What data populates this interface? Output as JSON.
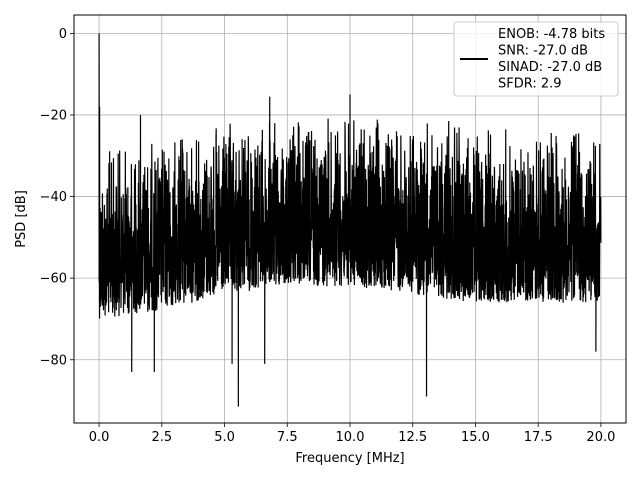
{
  "chart_data": {
    "type": "line",
    "title": "",
    "xlabel": "Frequency [MHz]",
    "ylabel": "PSD [dB]",
    "xlim": [
      -1.0,
      21.0
    ],
    "ylim": [
      -95.5,
      4.5
    ],
    "x_ticks": [
      0.0,
      2.5,
      5.0,
      7.5,
      10.0,
      12.5,
      15.0,
      17.5,
      20.0
    ],
    "x_tick_labels": [
      "0.0",
      "2.5",
      "5.0",
      "7.5",
      "10.0",
      "12.5",
      "15.0",
      "17.5",
      "20.0"
    ],
    "y_ticks": [
      0,
      -20,
      -40,
      -60,
      -80
    ],
    "y_tick_labels": [
      "0",
      "−20",
      "−40",
      "−60",
      "−80"
    ],
    "grid": true,
    "legend_position": "top-right",
    "legend": {
      "lines": [
        "ENOB: -4.78 bits",
        "SNR: -27.0 dB",
        "SINAD: -27.0 dB",
        "SFDR: 2.9"
      ]
    },
    "series": [
      {
        "color": "#000000",
        "x_range": [
          0.0,
          20.0
        ],
        "upper_envelope": [
          [
            0.0,
            -26
          ],
          [
            0.5,
            -26.5
          ],
          [
            2.5,
            -24.5
          ],
          [
            5.0,
            -21.5
          ],
          [
            7.5,
            -20
          ],
          [
            10.0,
            -19.5
          ],
          [
            12.5,
            -20.5
          ],
          [
            15.0,
            -21.5
          ],
          [
            17.5,
            -22
          ],
          [
            20.0,
            -23
          ]
        ],
        "lower_envelope": [
          [
            0.0,
            -70
          ],
          [
            2.5,
            -68
          ],
          [
            5.0,
            -64
          ],
          [
            7.5,
            -62
          ],
          [
            10.0,
            -62
          ],
          [
            12.5,
            -64
          ],
          [
            15.0,
            -66
          ],
          [
            17.5,
            -66
          ],
          [
            20.0,
            -66
          ]
        ],
        "notable_points": [
          [
            0.0,
            0
          ],
          [
            0.02,
            -18
          ],
          [
            0.04,
            -50
          ],
          [
            1.65,
            -20
          ],
          [
            6.8,
            -15.5
          ],
          [
            10.0,
            -15
          ],
          [
            1.3,
            -83
          ],
          [
            2.2,
            -83
          ],
          [
            5.3,
            -81
          ],
          [
            5.55,
            -91.5
          ],
          [
            6.6,
            -81
          ],
          [
            13.05,
            -89
          ],
          [
            19.8,
            -78
          ]
        ]
      }
    ]
  }
}
